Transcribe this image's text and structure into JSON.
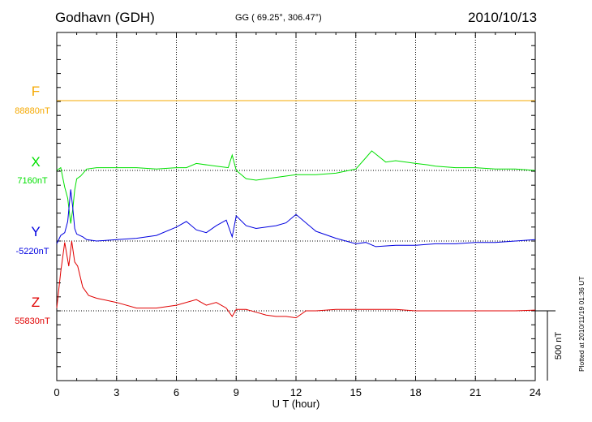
{
  "header": {
    "station": "Godhavn (GDH)",
    "coords": "GG ( 69.25°, 306.47°)",
    "date": "2010/10/13",
    "plotted": "Plotted at 2010/11/19 01:36 UT"
  },
  "chart_data": {
    "type": "line",
    "title": "Godhavn (GDH)",
    "xlabel": "U T (hour)",
    "ylabel": "",
    "xlim": [
      0,
      24
    ],
    "xticks": [
      0,
      3,
      6,
      9,
      12,
      15,
      18,
      21,
      24
    ],
    "xtick_labels": [
      "0",
      "3",
      "6",
      "9",
      "12",
      "15",
      "18",
      "21",
      "24"
    ],
    "scale_bar": {
      "label": "500 nT",
      "value_nT": 500
    },
    "grid": "dotted vertical lines every 3 hours; dotted horizontal baseline per component",
    "series": [
      {
        "name": "F",
        "baseline_label": "88880nT",
        "color": "#f5a800",
        "x": [
          0,
          24
        ],
        "values": [
          0,
          0
        ]
      },
      {
        "name": "X",
        "baseline_label": "7160nT",
        "color": "#00e000",
        "x": [
          0,
          0.2,
          0.4,
          0.55,
          0.7,
          0.8,
          0.9,
          1.0,
          1.2,
          1.5,
          2,
          3,
          4,
          5,
          6,
          6.5,
          7,
          8,
          8.6,
          8.8,
          9.0,
          9.5,
          10,
          11,
          12,
          13,
          14,
          15,
          15.5,
          15.8,
          16.5,
          17,
          18,
          18.6,
          19,
          20,
          21,
          22,
          23,
          24
        ],
        "values": [
          0,
          20,
          -120,
          -200,
          -380,
          -280,
          -140,
          -60,
          -40,
          10,
          20,
          20,
          20,
          10,
          20,
          20,
          50,
          30,
          20,
          110,
          0,
          -60,
          -70,
          -50,
          -30,
          -30,
          -20,
          10,
          90,
          140,
          60,
          70,
          50,
          40,
          30,
          20,
          20,
          10,
          10,
          0
        ]
      },
      {
        "name": "Y",
        "baseline_label": "-5220nT",
        "color": "#0000e0",
        "x": [
          0,
          0.2,
          0.4,
          0.55,
          0.7,
          0.8,
          0.9,
          1.0,
          1.3,
          1.5,
          2,
          3,
          4,
          5,
          6,
          6.5,
          7,
          7.5,
          8,
          8.5,
          8.8,
          9.0,
          9.5,
          10,
          11,
          11.5,
          12,
          13,
          14,
          15,
          15.5,
          16,
          17,
          18,
          19,
          20,
          21,
          22,
          23,
          24
        ],
        "values": [
          -20,
          40,
          60,
          140,
          370,
          240,
          90,
          50,
          30,
          10,
          0,
          10,
          20,
          40,
          100,
          140,
          80,
          60,
          110,
          150,
          30,
          180,
          110,
          90,
          110,
          130,
          190,
          70,
          20,
          -20,
          -10,
          -40,
          -30,
          -30,
          -20,
          -20,
          -10,
          -10,
          0,
          10
        ]
      },
      {
        "name": "Z",
        "baseline_label": "55830nT",
        "color": "#e00000",
        "x": [
          0,
          0.2,
          0.4,
          0.6,
          0.75,
          0.9,
          1.05,
          1.3,
          1.6,
          2,
          3,
          4,
          4.5,
          5,
          6,
          7,
          7.5,
          8,
          8.5,
          8.8,
          9.0,
          9.5,
          10,
          10.5,
          11,
          11.5,
          12,
          12.5,
          13,
          14,
          15,
          16,
          17,
          18,
          19,
          20,
          21,
          22,
          23,
          24
        ],
        "values": [
          20,
          280,
          490,
          320,
          500,
          350,
          320,
          170,
          110,
          90,
          60,
          20,
          20,
          20,
          40,
          80,
          40,
          60,
          20,
          -40,
          10,
          10,
          -10,
          -30,
          -40,
          -40,
          -50,
          0,
          0,
          10,
          10,
          10,
          10,
          0,
          0,
          0,
          0,
          0,
          0,
          5
        ]
      }
    ]
  }
}
